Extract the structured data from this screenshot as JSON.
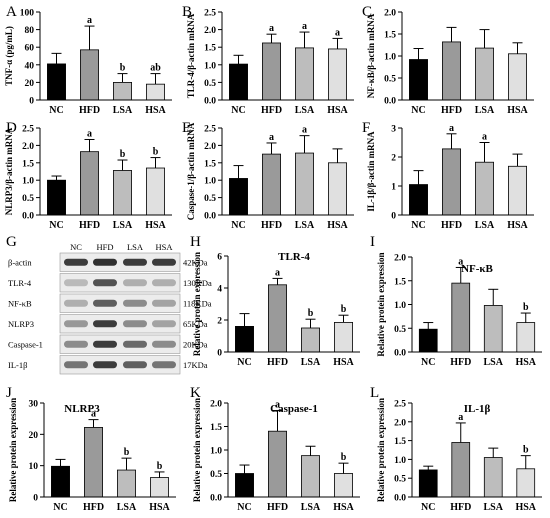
{
  "colors": {
    "NC": "#000000",
    "HFD": "#9a9a9a",
    "LSA": "#bdbdbd",
    "HSA": "#e0e0e0"
  },
  "blot": {
    "letter": "G",
    "lanes": [
      "NC",
      "HFD",
      "LSA",
      "HSA"
    ],
    "rows": [
      {
        "protein": "β-actin",
        "size": "42KDa",
        "intensity": [
          0.85,
          0.9,
          0.85,
          0.85
        ]
      },
      {
        "protein": "TLR-4",
        "size": "130KDa",
        "intensity": [
          0.3,
          0.75,
          0.35,
          0.35
        ]
      },
      {
        "protein": "NF-κB",
        "size": "118KDa",
        "intensity": [
          0.35,
          0.7,
          0.5,
          0.4
        ]
      },
      {
        "protein": "NLRP3",
        "size": "65KDa",
        "intensity": [
          0.45,
          0.85,
          0.5,
          0.4
        ]
      },
      {
        "protein": "Caspase-1",
        "size": "20KDa",
        "intensity": [
          0.5,
          0.85,
          0.65,
          0.5
        ]
      },
      {
        "protein": "IL-1β",
        "size": "17KDa",
        "intensity": [
          0.6,
          0.85,
          0.7,
          0.6
        ]
      }
    ]
  },
  "chart_data": [
    {
      "panel": "A",
      "type": "bar",
      "title": "",
      "ylabel": "TNF-α (pg/mL)",
      "categories": [
        "NC",
        "HFD",
        "LSA",
        "HSA"
      ],
      "values": [
        41,
        57,
        20,
        18
      ],
      "errors": [
        12,
        27,
        10,
        12
      ],
      "sig": [
        "",
        "a",
        "b",
        "ab"
      ],
      "ylim": [
        0,
        100
      ],
      "yticks": [
        0,
        20,
        40,
        60,
        80,
        100
      ]
    },
    {
      "panel": "B",
      "type": "bar",
      "title": "",
      "ylabel": "TLR-4/β-actin mRNA",
      "categories": [
        "NC",
        "HFD",
        "LSA",
        "HSA"
      ],
      "values": [
        1.02,
        1.62,
        1.48,
        1.45
      ],
      "errors": [
        0.25,
        0.25,
        0.45,
        0.3
      ],
      "sig": [
        "",
        "a",
        "a",
        "a"
      ],
      "ylim": [
        0,
        2.5
      ],
      "yticks": [
        0.0,
        0.5,
        1.0,
        1.5,
        2.0,
        2.5
      ]
    },
    {
      "panel": "C",
      "type": "bar",
      "title": "",
      "ylabel": "NF-κB/β-actin mRNA",
      "categories": [
        "NC",
        "HFD",
        "LSA",
        "HSA"
      ],
      "values": [
        0.92,
        1.32,
        1.18,
        1.05
      ],
      "errors": [
        0.25,
        0.33,
        0.42,
        0.25
      ],
      "sig": [
        "",
        "",
        "",
        ""
      ],
      "ylim": [
        0,
        2.0
      ],
      "yticks": [
        0.0,
        0.5,
        1.0,
        1.5,
        2.0
      ]
    },
    {
      "panel": "D",
      "type": "bar",
      "title": "",
      "ylabel": "NLRP3/β-actin mRNA",
      "categories": [
        "NC",
        "HFD",
        "LSA",
        "HSA"
      ],
      "values": [
        1.0,
        1.82,
        1.28,
        1.35
      ],
      "errors": [
        0.12,
        0.35,
        0.3,
        0.3
      ],
      "sig": [
        "",
        "a",
        "b",
        "b"
      ],
      "ylim": [
        0,
        2.5
      ],
      "yticks": [
        0.0,
        0.5,
        1.0,
        1.5,
        2.0,
        2.5
      ]
    },
    {
      "panel": "E",
      "type": "bar",
      "title": "",
      "ylabel": "Caspase-1/β-actin mRNA",
      "categories": [
        "NC",
        "HFD",
        "LSA",
        "HSA"
      ],
      "values": [
        1.05,
        1.75,
        1.78,
        1.5
      ],
      "errors": [
        0.37,
        0.32,
        0.5,
        0.4
      ],
      "sig": [
        "",
        "a",
        "a",
        ""
      ],
      "ylim": [
        0,
        2.5
      ],
      "yticks": [
        0.0,
        0.5,
        1.0,
        1.5,
        2.0,
        2.5
      ]
    },
    {
      "panel": "F",
      "type": "bar",
      "title": "",
      "ylabel": "IL-1β/β-actin mRNA",
      "categories": [
        "NC",
        "HFD",
        "LSA",
        "HSA"
      ],
      "values": [
        1.05,
        2.28,
        1.82,
        1.68
      ],
      "errors": [
        0.48,
        0.52,
        0.68,
        0.42
      ],
      "sig": [
        "",
        "a",
        "a",
        ""
      ],
      "ylim": [
        0,
        3
      ],
      "yticks": [
        0,
        1,
        2,
        3
      ]
    },
    {
      "panel": "H",
      "type": "bar",
      "title": "TLR-4",
      "ylabel": "Relative protein expression",
      "categories": [
        "NC",
        "HFD",
        "LSA",
        "HSA"
      ],
      "values": [
        1.6,
        4.2,
        1.5,
        1.85
      ],
      "errors": [
        0.8,
        0.4,
        0.55,
        0.45
      ],
      "sig": [
        "",
        "a",
        "b",
        "b"
      ],
      "ylim": [
        0,
        6
      ],
      "yticks": [
        0,
        2,
        4,
        6
      ]
    },
    {
      "panel": "I",
      "type": "bar",
      "title": "NF-κB",
      "ylabel": "Relative protein expression",
      "categories": [
        "NC",
        "HFD",
        "LSA",
        "HSA"
      ],
      "values": [
        0.48,
        1.45,
        0.98,
        0.62
      ],
      "errors": [
        0.14,
        0.33,
        0.34,
        0.2
      ],
      "sig": [
        "",
        "a",
        "",
        "b"
      ],
      "ylim": [
        0,
        2.0
      ],
      "yticks": [
        0.0,
        0.5,
        1.0,
        1.5,
        2.0
      ]
    },
    {
      "panel": "J",
      "type": "bar",
      "title": "NLRP3",
      "ylabel": "Relative protein expression",
      "categories": [
        "NC",
        "HFD",
        "LSA",
        "HSA"
      ],
      "values": [
        9.8,
        22.2,
        8.6,
        6.2
      ],
      "errors": [
        2.2,
        2.5,
        3.8,
        1.8
      ],
      "sig": [
        "",
        "a",
        "b",
        "b"
      ],
      "ylim": [
        0,
        30
      ],
      "yticks": [
        0,
        10,
        20,
        30
      ]
    },
    {
      "panel": "K",
      "type": "bar",
      "title": "Caspase-1",
      "ylabel": "Relative protein expression",
      "categories": [
        "NC",
        "HFD",
        "LSA",
        "HSA"
      ],
      "values": [
        0.5,
        1.4,
        0.88,
        0.5
      ],
      "errors": [
        0.18,
        0.44,
        0.2,
        0.22
      ],
      "sig": [
        "",
        "a",
        "",
        "b"
      ],
      "ylim": [
        0,
        2.0
      ],
      "yticks": [
        0.0,
        0.5,
        1.0,
        1.5,
        2.0
      ]
    },
    {
      "panel": "L",
      "type": "bar",
      "title": "IL-1β",
      "ylabel": "Relative protein expression",
      "categories": [
        "NC",
        "HFD",
        "LSA",
        "HSA"
      ],
      "values": [
        0.72,
        1.45,
        1.05,
        0.75
      ],
      "errors": [
        0.1,
        0.52,
        0.25,
        0.35
      ],
      "sig": [
        "",
        "a",
        "",
        "b"
      ],
      "ylim": [
        0,
        2.5
      ],
      "yticks": [
        0.0,
        0.5,
        1.0,
        1.5,
        2.0,
        2.5
      ]
    }
  ]
}
